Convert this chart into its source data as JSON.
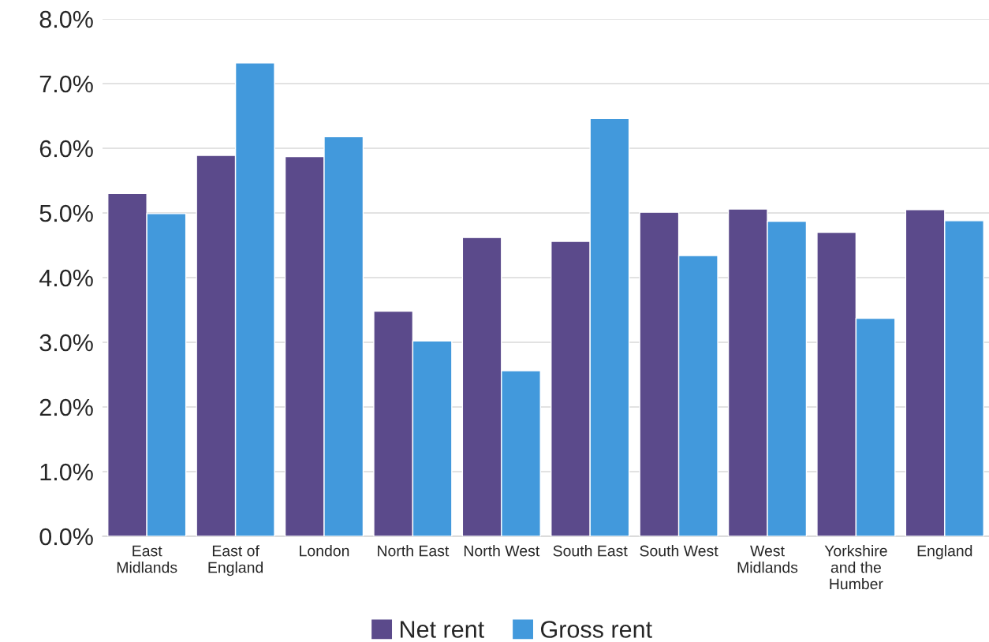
{
  "chart_data": {
    "type": "bar",
    "categories": [
      "East\nMidlands",
      "East of\nEngland",
      "London",
      "North East",
      "North West",
      "South East",
      "South West",
      "West\nMidlands",
      "Yorkshire\nand the\nHumber",
      "England"
    ],
    "series": [
      {
        "name": "Net rent",
        "color": "#5b4a8b",
        "values": [
          5.3,
          5.89,
          5.87,
          3.48,
          4.62,
          4.56,
          5.01,
          5.06,
          4.7,
          5.05
        ]
      },
      {
        "name": "Gross rent",
        "color": "#4299dc",
        "values": [
          4.99,
          7.32,
          6.18,
          3.02,
          2.56,
          6.46,
          4.34,
          4.87,
          3.37,
          4.88
        ]
      }
    ],
    "ylim": [
      0,
      8
    ],
    "yticks": [
      {
        "value": 0,
        "label": "0.0%"
      },
      {
        "value": 1,
        "label": "1.0%"
      },
      {
        "value": 2,
        "label": "2.0%"
      },
      {
        "value": 3,
        "label": "3.0%"
      },
      {
        "value": 4,
        "label": "4.0%"
      },
      {
        "value": 5,
        "label": "5.0%"
      },
      {
        "value": 6,
        "label": "6.0%"
      },
      {
        "value": 7,
        "label": "7.0%"
      },
      {
        "value": 8,
        "label": "8.0%"
      }
    ],
    "grid": "y",
    "legend": "bottom"
  }
}
